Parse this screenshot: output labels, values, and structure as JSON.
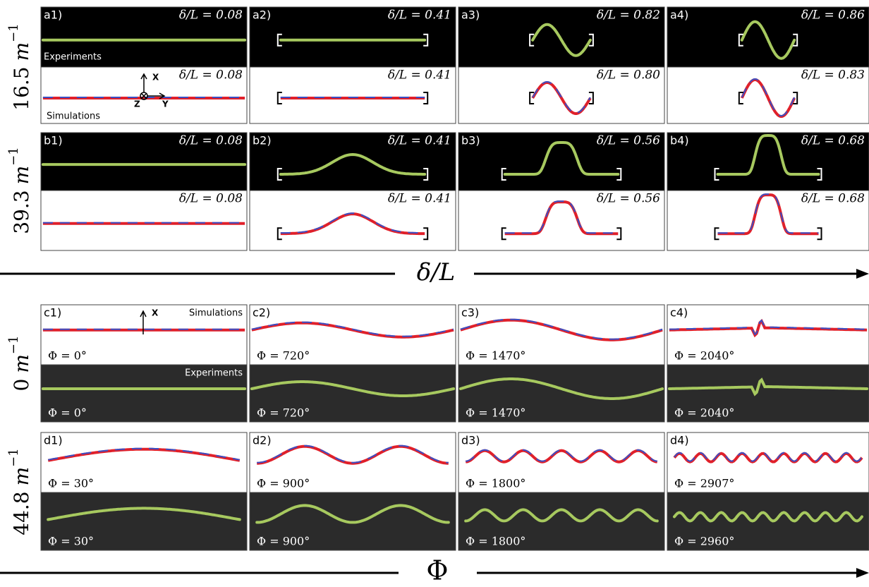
{
  "row_labels": [
    {
      "value": "16.5",
      "unit": "m",
      "exponent": "−1"
    },
    {
      "value": "39.3",
      "unit": "m",
      "exponent": "−1"
    },
    {
      "value": "0",
      "unit": "m",
      "exponent": "−1"
    },
    {
      "value": "44.8",
      "unit": "m",
      "exponent": "−1"
    }
  ],
  "axes": [
    {
      "label": "δ/L"
    },
    {
      "label": "Φ"
    }
  ],
  "rows": [
    {
      "panels": [
        {
          "label": "a1)",
          "top": "δ/L = 0.08",
          "bottom": "δ/L = 0.08",
          "notes": [
            "Experiments",
            "Simulations"
          ],
          "axis_labels": [
            "X",
            "Z",
            "Y"
          ]
        },
        {
          "label": "a2)",
          "top": "δ/L = 0.41",
          "bottom": "δ/L = 0.41"
        },
        {
          "label": "a3)",
          "top": "δ/L = 0.82",
          "bottom": "δ/L = 0.80"
        },
        {
          "label": "a4)",
          "top": "δ/L = 0.86",
          "bottom": "δ/L = 0.83"
        }
      ]
    },
    {
      "panels": [
        {
          "label": "b1)",
          "top": "δ/L = 0.08",
          "bottom": "δ/L = 0.08"
        },
        {
          "label": "b2)",
          "top": "δ/L = 0.41",
          "bottom": "δ/L = 0.41"
        },
        {
          "label": "b3)",
          "top": "δ/L = 0.56",
          "bottom": "δ/L = 0.56"
        },
        {
          "label": "b4)",
          "top": "δ/L = 0.68",
          "bottom": "δ/L = 0.68"
        }
      ]
    },
    {
      "panels": [
        {
          "label": "c1)",
          "top": "Φ = 0°",
          "bottom": "Φ = 0°",
          "notes": [
            "Simulations",
            "Experiments"
          ],
          "axis_labels": [
            "X"
          ]
        },
        {
          "label": "c2)",
          "top": "Φ = 720°",
          "bottom": "Φ = 720°"
        },
        {
          "label": "c3)",
          "top": "Φ = 1470°",
          "bottom": "Φ = 1470°"
        },
        {
          "label": "c4)",
          "top": "Φ = 2040°",
          "bottom": "Φ = 2040°"
        }
      ]
    },
    {
      "panels": [
        {
          "label": "d1)",
          "top": "Φ = 30°",
          "bottom": "Φ = 30°"
        },
        {
          "label": "d2)",
          "top": "Φ = 900°",
          "bottom": "Φ = 900°"
        },
        {
          "label": "d3)",
          "top": "Φ = 1800°",
          "bottom": "Φ = 1800°"
        },
        {
          "label": "d4)",
          "top": "Φ = 2907°",
          "bottom": "Φ = 2960°"
        }
      ]
    }
  ]
}
